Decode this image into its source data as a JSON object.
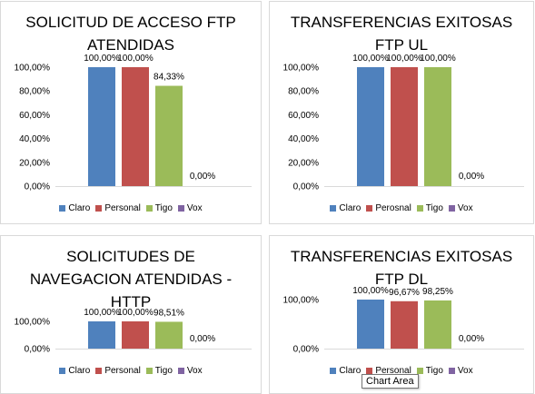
{
  "legend_colors": [
    "#4f81bd",
    "#c0504d",
    "#9bbb59",
    "#8064a2"
  ],
  "tooltip": "Chart Area",
  "chart_data": [
    {
      "type": "bar",
      "title_lines": [
        "SOLICITUD DE ACCESO FTP",
        "ATENDIDAS"
      ],
      "categories": [
        "Claro",
        "Personal",
        "Tigo",
        "Vox"
      ],
      "values": [
        100,
        100,
        84.33,
        0
      ],
      "data_labels": [
        "100,00%",
        "100,00%",
        "84,33%",
        "0,00%"
      ],
      "ylim": [
        0,
        100
      ],
      "y_ticks": [
        0,
        20,
        40,
        60,
        80,
        100
      ],
      "y_tick_labels": [
        "0,00%",
        "20,00%",
        "40,00%",
        "60,00%",
        "80,00%",
        "100,00%"
      ],
      "legend": [
        "Claro",
        "Personal",
        "Tigo",
        "Vox"
      ],
      "grid": false
    },
    {
      "type": "bar",
      "title_lines": [
        "TRANSFERENCIAS EXITOSAS",
        "FTP UL"
      ],
      "categories": [
        "Claro",
        "Perosnal",
        "Tigo",
        "Vox"
      ],
      "values": [
        100,
        100,
        100,
        0
      ],
      "data_labels": [
        "100,00%",
        "100,00%",
        "100,00%",
        "0,00%"
      ],
      "ylim": [
        0,
        100
      ],
      "y_ticks": [
        0,
        20,
        40,
        60,
        80,
        100
      ],
      "y_tick_labels": [
        "0,00%",
        "20,00%",
        "40,00%",
        "60,00%",
        "80,00%",
        "100,00%"
      ],
      "legend": [
        "Claro",
        "Perosnal",
        "Tigo",
        "Vox"
      ],
      "grid": false
    },
    {
      "type": "bar",
      "title_lines": [
        "SOLICITUDES DE",
        "NAVEGACION ATENDIDAS -",
        "HTTP"
      ],
      "categories": [
        "Claro",
        "Personal",
        "Tigo",
        "Vox"
      ],
      "values": [
        100,
        100,
        98.51,
        0
      ],
      "data_labels": [
        "100,00%",
        "100,00%",
        "98,51%",
        "0,00%"
      ],
      "ylim": [
        0,
        100
      ],
      "y_ticks": [
        0,
        100
      ],
      "y_tick_labels": [
        "0,00%",
        "100,00%"
      ],
      "legend": [
        "Claro",
        "Personal",
        "Tigo",
        "Vox"
      ],
      "grid": false
    },
    {
      "type": "bar",
      "title_lines": [
        "TRANSFERENCIAS EXITOSAS",
        "FTP DL"
      ],
      "categories": [
        "Claro",
        "Personal",
        "Tigo",
        "Vox"
      ],
      "values": [
        100,
        96.67,
        98.25,
        0
      ],
      "data_labels": [
        "100,00%",
        "96,67%",
        "98,25%",
        "0,00%"
      ],
      "ylim": [
        0,
        100
      ],
      "y_ticks": [
        0,
        100
      ],
      "y_tick_labels": [
        "0,00%",
        "100,00%"
      ],
      "legend": [
        "Claro",
        "Personal",
        "Tigo",
        "Vox"
      ],
      "grid": false
    }
  ]
}
